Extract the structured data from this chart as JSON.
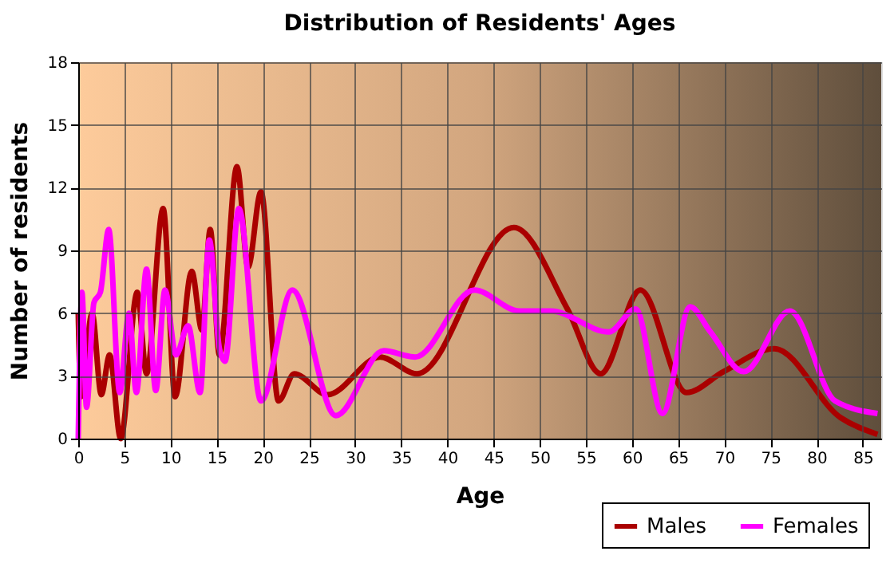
{
  "chart_data": {
    "type": "line",
    "title": "Distribution of Residents' Ages",
    "xlabel": "Age",
    "ylabel": "Number of residents",
    "xlim": [
      0,
      87
    ],
    "xticks": [
      0,
      5,
      10,
      15,
      20,
      25,
      30,
      35,
      40,
      45,
      50,
      55,
      60,
      65,
      70,
      75,
      80,
      85
    ],
    "ylim": [
      0,
      18
    ],
    "yticks": [
      0,
      3,
      6,
      9,
      12,
      15,
      18
    ],
    "grid": true,
    "legend": "bottom right",
    "line_style": "solid",
    "marker": "none",
    "series": [
      {
        "name": "Males",
        "color": "#aa0000",
        "x": [
          0,
          0.3,
          1.5,
          2.5,
          3.4,
          4.6,
          6.4,
          7.4,
          9.2,
          10.5,
          12.3,
          13.4,
          14.3,
          15.3,
          17.2,
          18.4,
          19.8,
          21.7,
          23.4,
          27.0,
          32.7,
          36.7,
          47.2,
          53.0,
          56.6,
          60.9,
          65.9,
          69.9,
          75.4,
          82.6,
          86.6
        ],
        "values": [
          6,
          2,
          6,
          2.1,
          4,
          0,
          7,
          3.1,
          11,
          2,
          8,
          5.2,
          10,
          4,
          13,
          8.2,
          11.8,
          1.8,
          3.1,
          2.1,
          3.9,
          3.1,
          10.1,
          6.2,
          3.1,
          7.1,
          2.2,
          3.2,
          4.3,
          1,
          0.2
        ]
      },
      {
        "name": "Females",
        "color": "#ff00ff",
        "x": [
          0,
          0.4,
          0.9,
          1.7,
          2.4,
          3.3,
          4.5,
          5.5,
          6.3,
          7.4,
          8.4,
          9.4,
          10.6,
          11.9,
          13.2,
          14.2,
          15.3,
          15.9,
          17.4,
          19.8,
          23.2,
          27.9,
          33.1,
          36.5,
          42.9,
          47.8,
          51.2,
          57.5,
          60.4,
          63.3,
          66.3,
          68.5,
          72.1,
          77.1,
          82.0,
          86.6
        ],
        "values": [
          0,
          7,
          1.5,
          6.5,
          7,
          10,
          2.2,
          6,
          2.2,
          8.1,
          2.3,
          7.1,
          4,
          5.4,
          2.2,
          9.5,
          4.3,
          3.7,
          11,
          1.8,
          7.1,
          1.1,
          4.2,
          3.9,
          7.1,
          6.1,
          6.1,
          5.1,
          6.2,
          1.2,
          6.3,
          5.1,
          3.2,
          6.1,
          1.8,
          1.2
        ]
      }
    ]
  }
}
